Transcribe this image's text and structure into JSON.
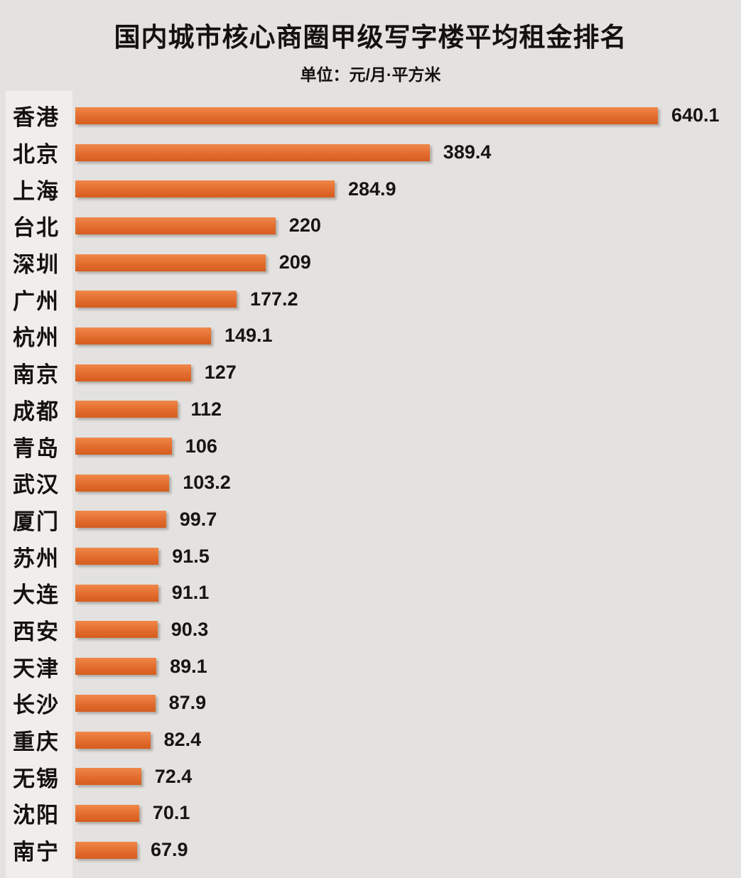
{
  "title": "国内城市核心商圈甲级写字楼平均租金排名",
  "subtitle": "单位：元/月·平方米",
  "colors": {
    "background": "#e3e2e0",
    "label_strip": "#efeeec",
    "bar_orange_top": "#f0874a",
    "bar_orange_bottom": "#d55d1f",
    "text": "#141210"
  },
  "chart_data": {
    "type": "bar",
    "orientation": "horizontal",
    "title": "国内城市核心商圈甲级写字楼平均租金排名",
    "unit_label": "单位：元/月·平方米",
    "categories": [
      "香港",
      "北京",
      "上海",
      "台北",
      "深圳",
      "广州",
      "杭州",
      "南京",
      "成都",
      "青岛",
      "武汉",
      "厦门",
      "苏州",
      "大连",
      "西安",
      "天津",
      "长沙",
      "重庆",
      "无锡",
      "沈阳",
      "南宁"
    ],
    "values": [
      640.1,
      389.4,
      284.9,
      220,
      209,
      177.2,
      149.1,
      127,
      112,
      106,
      103.2,
      99.7,
      91.5,
      91.1,
      90.3,
      89.1,
      87.9,
      82.4,
      72.4,
      70.1,
      67.9
    ],
    "value_labels_shown": true,
    "xlim": [
      0,
      660
    ],
    "grid": false,
    "legend": false,
    "sort": "descending"
  }
}
